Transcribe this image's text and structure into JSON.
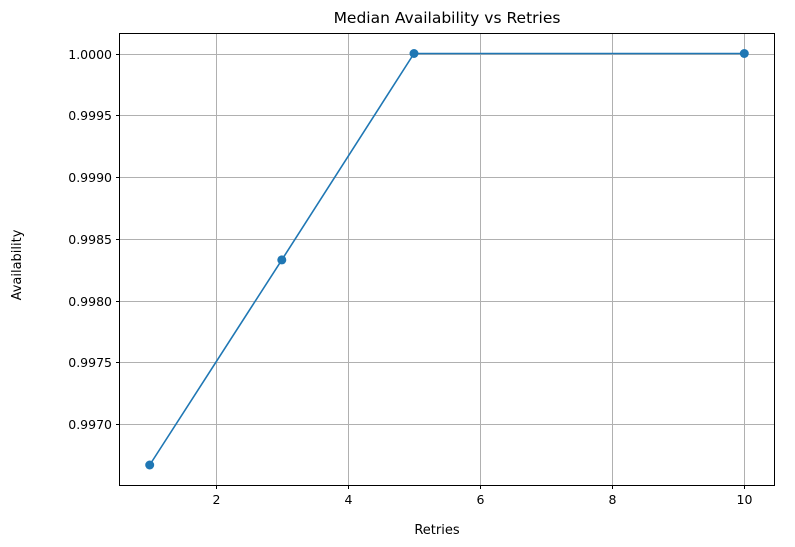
{
  "chart_data": {
    "type": "line",
    "title": "Median Availability vs Retries",
    "xlabel": "Retries",
    "ylabel": "Availability",
    "grid": true,
    "x_ticks": [
      2,
      4,
      6,
      8,
      10
    ],
    "x_tick_labels": [
      "2",
      "4",
      "6",
      "8",
      "10"
    ],
    "y_ticks": [
      0.997,
      0.9975,
      0.998,
      0.9985,
      0.999,
      0.9995,
      1.0
    ],
    "y_tick_labels": [
      "0.9970",
      "0.9975",
      "0.9980",
      "0.9985",
      "0.9990",
      "0.9995",
      "1.0000"
    ],
    "xlim": [
      0.55,
      10.45
    ],
    "ylim": [
      0.996508,
      1.000158
    ],
    "color": "#1f77b4",
    "marker": "circle",
    "series": [
      {
        "x": [
          1,
          3,
          5,
          10
        ],
        "y": [
          0.99667,
          0.99833,
          1.0,
          1.0
        ]
      }
    ]
  }
}
